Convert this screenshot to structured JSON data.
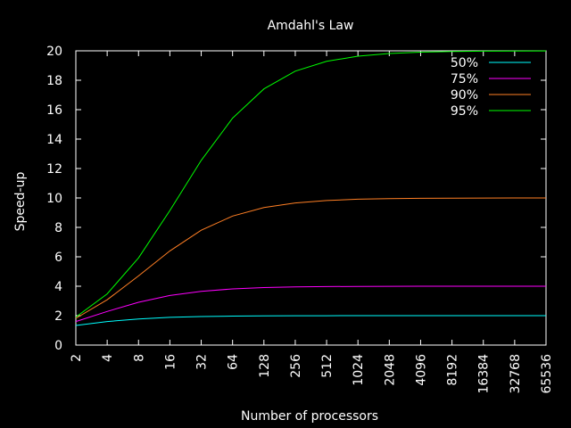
{
  "chart_data": {
    "type": "line",
    "title": "Amdahl's Law",
    "xlabel": "Number of processors",
    "ylabel": "Speed-up",
    "xscale": "log2",
    "x": [
      2,
      4,
      8,
      16,
      32,
      64,
      128,
      256,
      512,
      1024,
      2048,
      4096,
      8192,
      16384,
      32768,
      65536
    ],
    "x_tick_labels": [
      "2",
      "4",
      "8",
      "16",
      "32",
      "64",
      "128",
      "256",
      "512",
      "1024",
      "2048",
      "4096",
      "8192",
      "16384",
      "32768",
      "65536"
    ],
    "xlim": [
      2,
      65536
    ],
    "ylim": [
      0,
      20
    ],
    "y_ticks": [
      0,
      2,
      4,
      6,
      8,
      10,
      12,
      14,
      16,
      18,
      20
    ],
    "grid": false,
    "legend_position": "top-right",
    "background": "#000000",
    "axis_color": "#ffffff",
    "series": [
      {
        "name": "50%",
        "p": 0.5,
        "color": "#00ffff"
      },
      {
        "name": "75%",
        "p": 0.75,
        "color": "#ff00ff"
      },
      {
        "name": "90%",
        "p": 0.9,
        "color": "#ff7f24"
      },
      {
        "name": "95%",
        "p": 0.95,
        "color": "#00ff00"
      }
    ]
  }
}
